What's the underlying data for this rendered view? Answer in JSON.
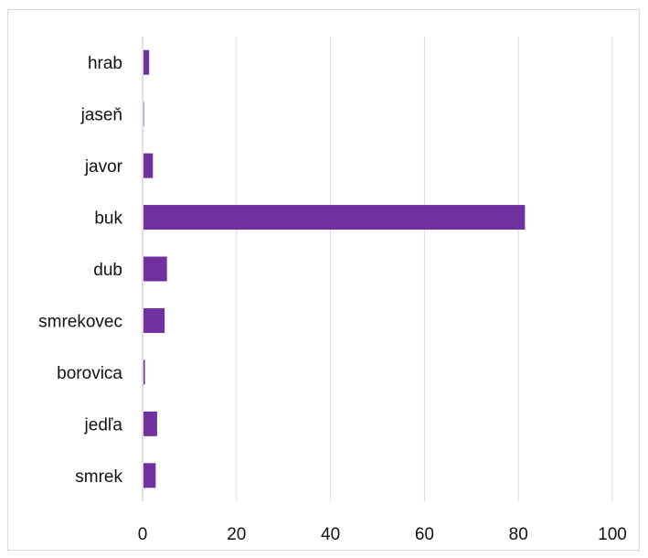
{
  "chart_data": {
    "type": "bar",
    "orientation": "horizontal",
    "categories": [
      "hrab",
      "jaseň",
      "javor",
      "buk",
      "dub",
      "smrekovec",
      "borovica",
      "jedľa",
      "smrek"
    ],
    "values": [
      1.2,
      0.1,
      2.0,
      81.2,
      5.0,
      4.5,
      0.3,
      2.9,
      2.6
    ],
    "xlim": [
      0,
      100
    ],
    "xticks": [
      "0",
      "20",
      "40",
      "60",
      "80",
      "100"
    ],
    "grid": "vertical",
    "legend": "none",
    "bar_color": "#7030a0",
    "grid_color": "#d9d9d9"
  }
}
